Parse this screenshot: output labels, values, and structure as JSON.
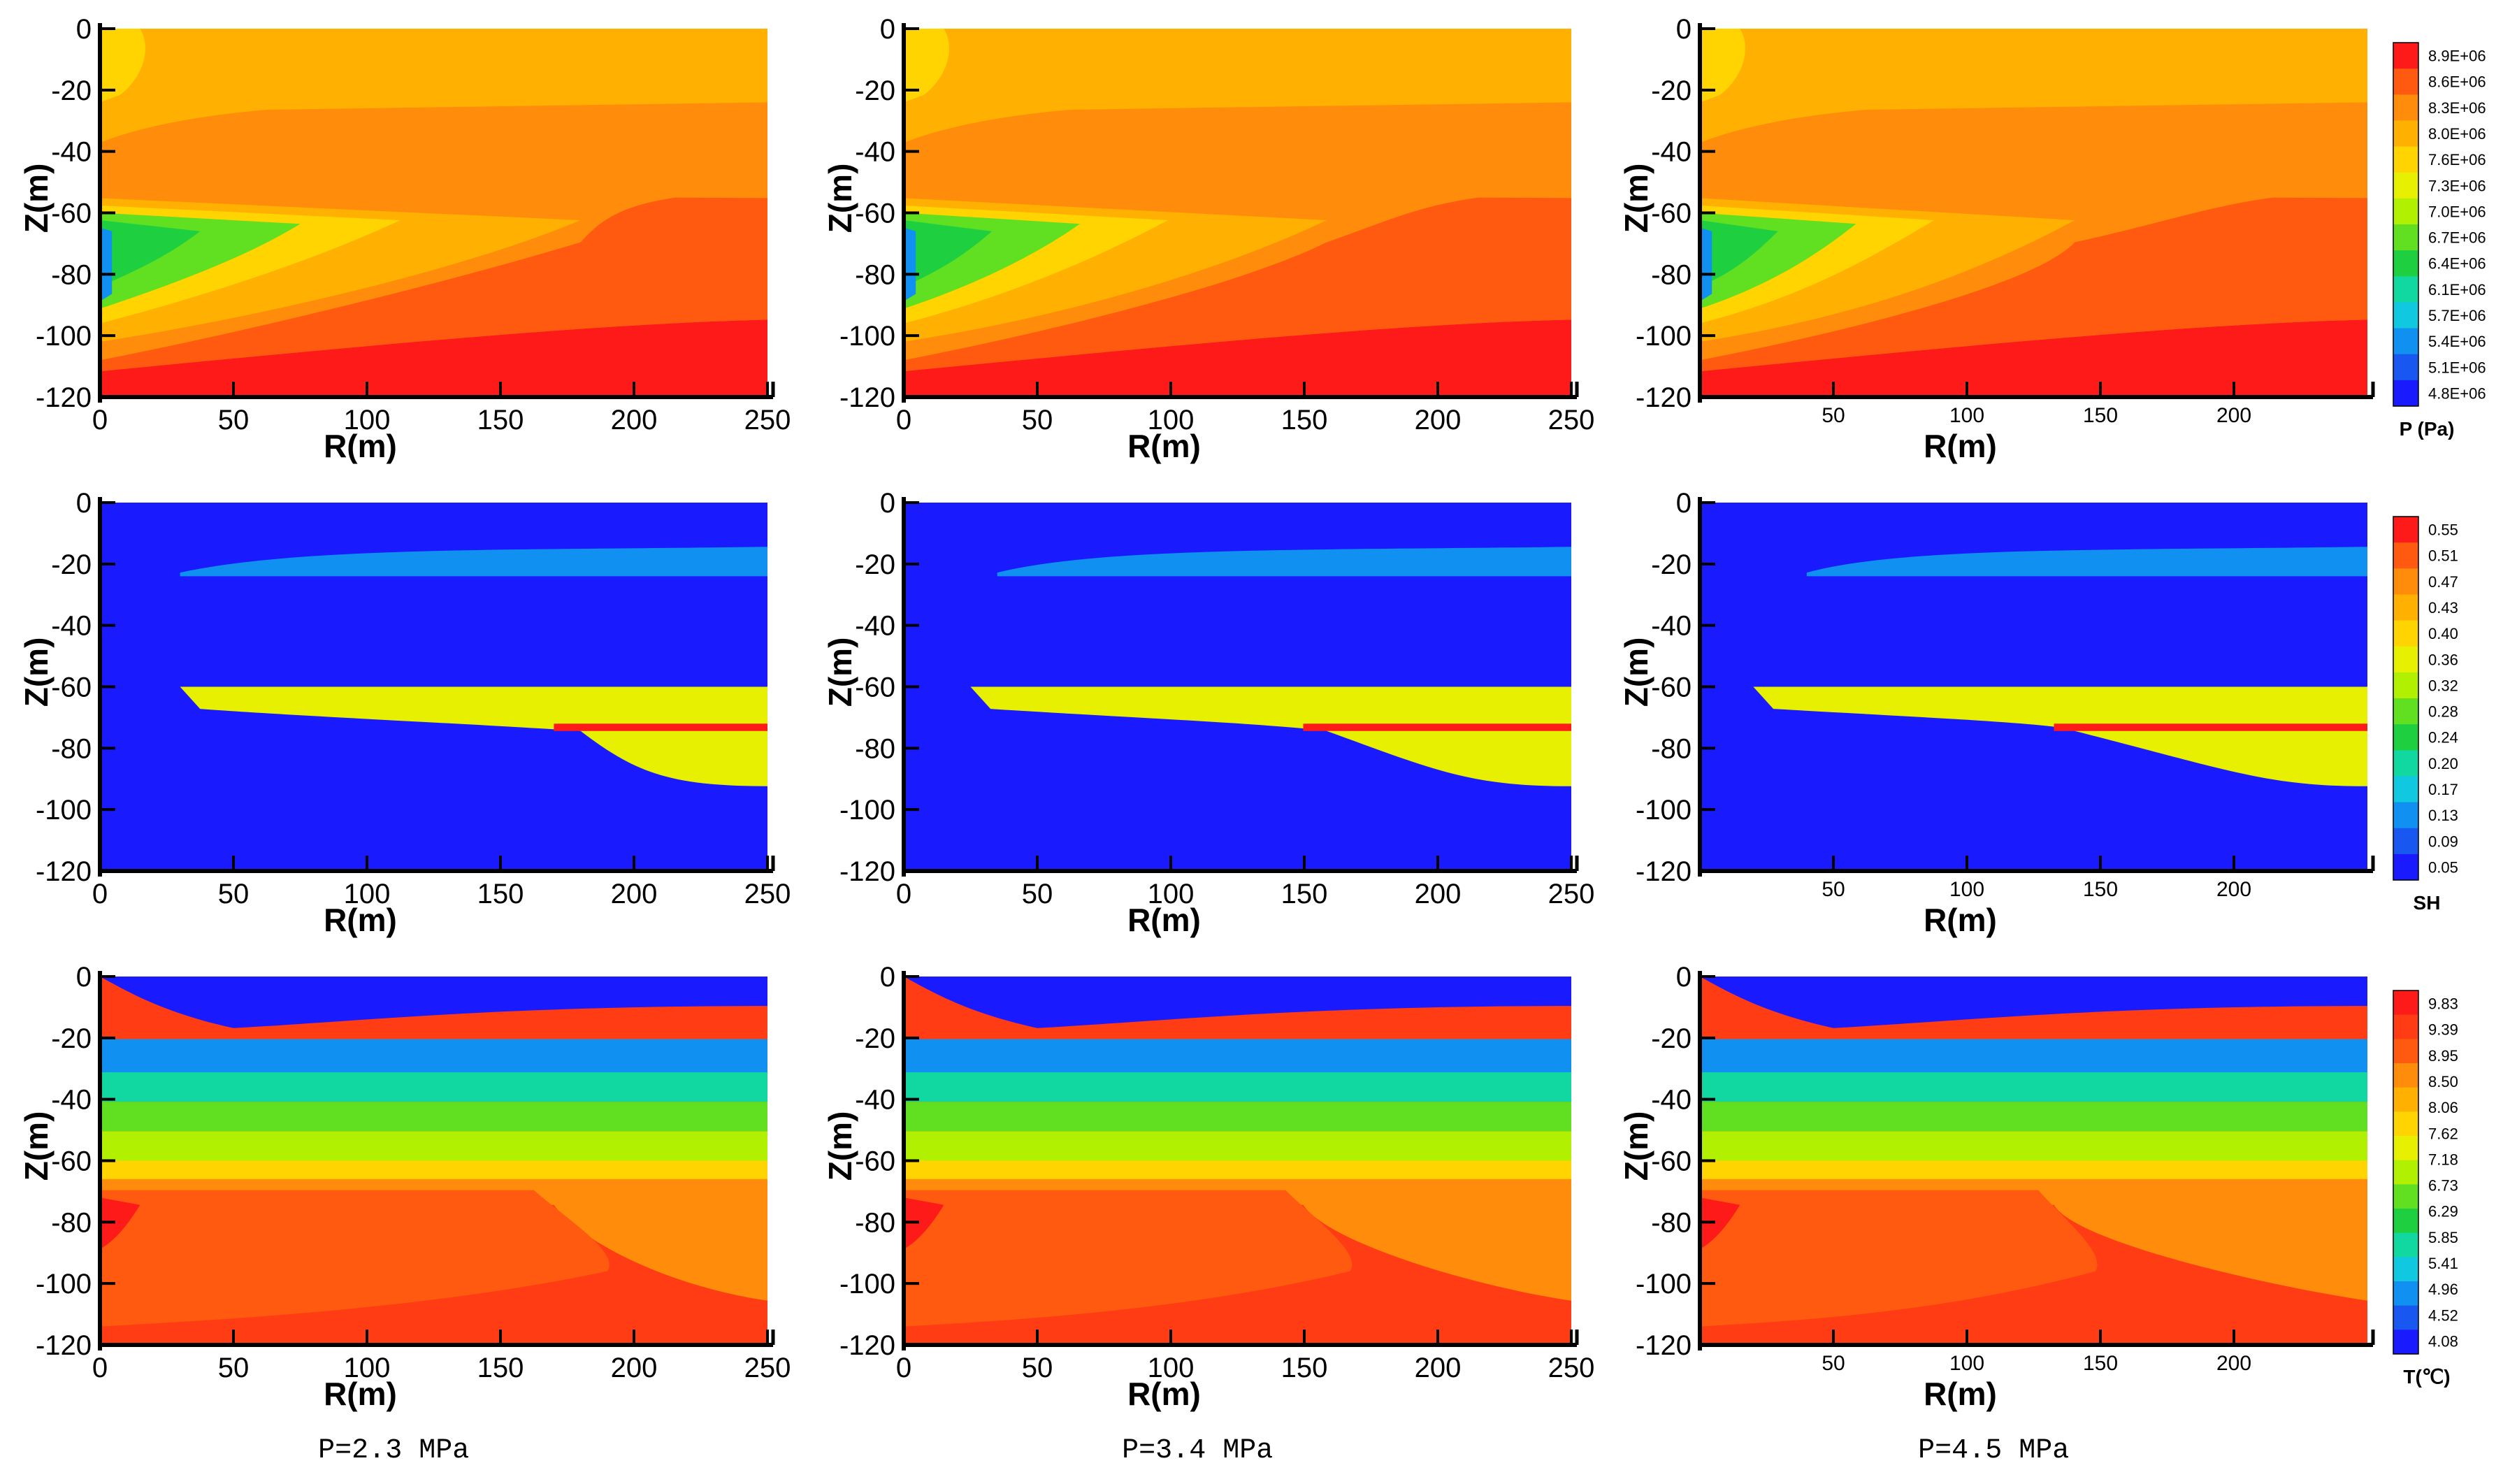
{
  "chart_data": {
    "type": "heatmap",
    "description_rows": [
      "P",
      "SH",
      "T"
    ],
    "axes": {
      "xlabel": "R(m)",
      "ylabel": "Z(m)",
      "xlim": [
        0,
        250
      ],
      "ylim": [
        -120,
        0
      ],
      "xticks": [
        0,
        50,
        100,
        150,
        200,
        250
      ],
      "xticks_compact": [
        50,
        100,
        150,
        200
      ],
      "yticks": [
        0,
        -20,
        -40,
        -60,
        -80,
        -100,
        -120
      ]
    },
    "columns": [
      {
        "caption": "P=2.3 MPa"
      },
      {
        "caption": "P=3.4 MPa"
      },
      {
        "caption": "P=4.5 MPa"
      }
    ],
    "rows": [
      {
        "variable": "P",
        "colorbar_title": "P (Pa)",
        "colorbar_labels": [
          "8.9E+06",
          "8.6E+06",
          "8.3E+06",
          "8.0E+06",
          "7.6E+06",
          "7.3E+06",
          "7.0E+06",
          "6.7E+06",
          "6.4E+06",
          "6.1E+06",
          "5.7E+06",
          "5.4E+06",
          "5.1E+06",
          "4.8E+06"
        ],
        "colorbar_colors": [
          "#ff1a1a",
          "#ff5a0f",
          "#ff8c0a",
          "#ffb000",
          "#ffd400",
          "#e6f000",
          "#b0f000",
          "#60e020",
          "#1ed040",
          "#10d8a0",
          "#10c8e0",
          "#1090f0",
          "#1858f0",
          "#1a1aff"
        ]
      },
      {
        "variable": "SH",
        "colorbar_title": "SH",
        "colorbar_labels": [
          "0.55",
          "0.51",
          "0.47",
          "0.43",
          "0.40",
          "0.36",
          "0.32",
          "0.28",
          "0.24",
          "0.20",
          "0.17",
          "0.13",
          "0.09",
          "0.05"
        ],
        "colorbar_colors": [
          "#ff1a1a",
          "#ff5a0f",
          "#ff8c0a",
          "#ffb000",
          "#ffd400",
          "#e6f000",
          "#b0f000",
          "#60e020",
          "#1ed040",
          "#10d8a0",
          "#10c8e0",
          "#1090f0",
          "#1858f0",
          "#1a1aff"
        ]
      },
      {
        "variable": "T",
        "colorbar_title": "T(℃)",
        "colorbar_labels": [
          "9.83",
          "9.39",
          "8.95",
          "8.50",
          "8.06",
          "7.62",
          "7.18",
          "6.73",
          "6.29",
          "5.85",
          "5.41",
          "4.96",
          "4.52",
          "4.08"
        ],
        "colorbar_colors": [
          "#ff1a1a",
          "#ff3c14",
          "#ff5a0f",
          "#ff8c0a",
          "#ffb000",
          "#ffd400",
          "#e6f000",
          "#b0f000",
          "#60e020",
          "#1ed040",
          "#10d8a0",
          "#10c8e0",
          "#1090f0",
          "#1858f0",
          "#1a1aff"
        ]
      }
    ]
  }
}
